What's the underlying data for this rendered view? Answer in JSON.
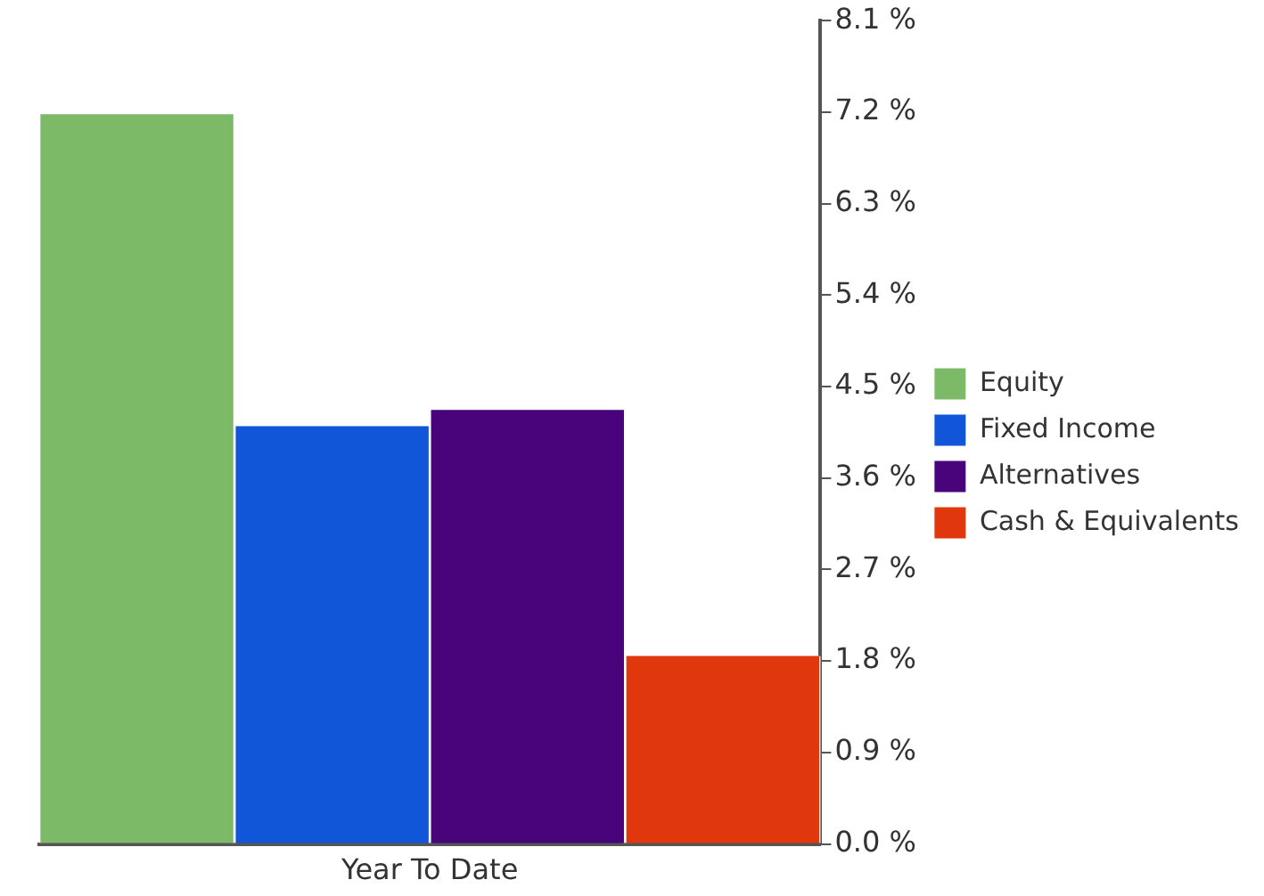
{
  "chart_data": {
    "type": "bar",
    "categories": [
      "Year To Date"
    ],
    "series": [
      {
        "name": "Equity",
        "color": "#7dba67",
        "values": [
          7.18
        ]
      },
      {
        "name": "Fixed Income",
        "color": "#1155d9",
        "values": [
          4.11
        ]
      },
      {
        "name": "Alternatives",
        "color": "#49037b",
        "values": [
          4.27
        ]
      },
      {
        "name": "Cash & Equivalents",
        "color": "#e0380c",
        "values": [
          1.85
        ]
      }
    ],
    "ylim": [
      0,
      8.1
    ],
    "yticks": [
      {
        "value": 0,
        "label": "0.0 %"
      },
      {
        "value": 0.9,
        "label": "0.9 %"
      },
      {
        "value": 1.8,
        "label": "1.8 %"
      },
      {
        "value": 2.7,
        "label": "2.7 %"
      },
      {
        "value": 3.6,
        "label": "3.6 %"
      },
      {
        "value": 4.5,
        "label": "4.5 %"
      },
      {
        "value": 5.4,
        "label": "5.4 %"
      },
      {
        "value": 6.3,
        "label": "6.3 %"
      },
      {
        "value": 7.2,
        "label": "7.2 %"
      },
      {
        "value": 8.1,
        "label": "8.1 %"
      }
    ],
    "legend": "right",
    "grid": false
  }
}
